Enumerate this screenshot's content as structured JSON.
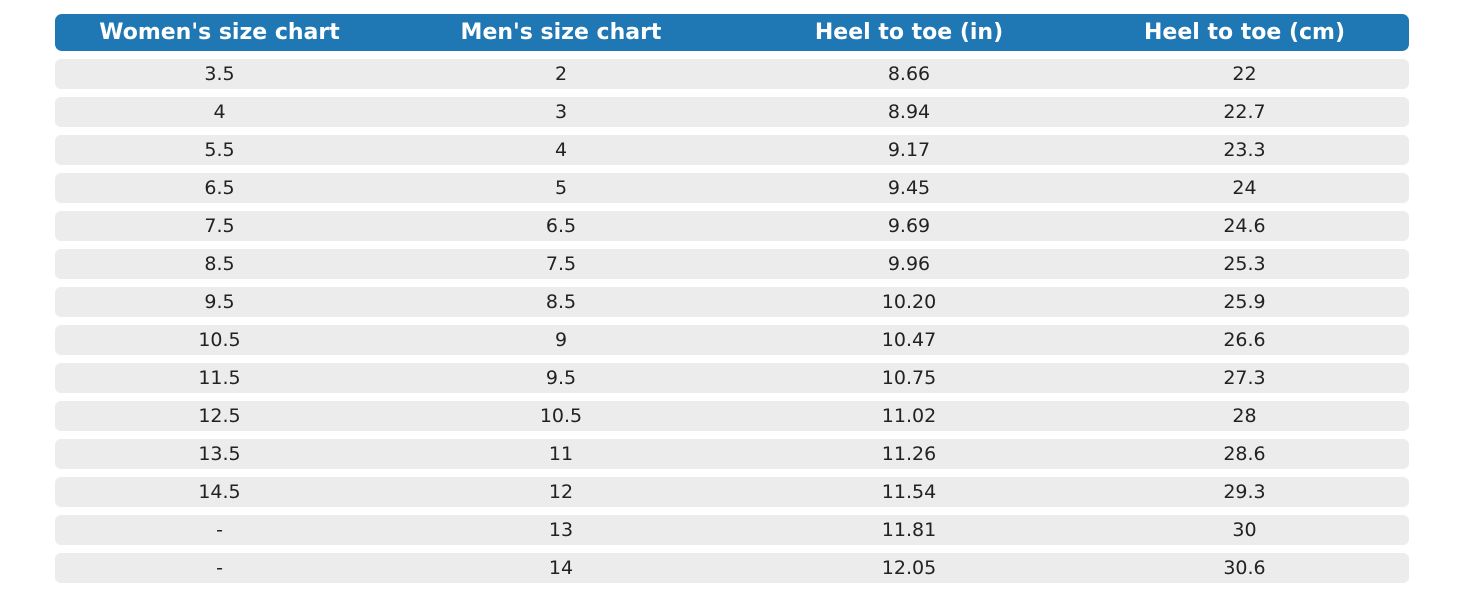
{
  "colors": {
    "header_bg": "#1f77b4",
    "row_bg": "#edeced"
  },
  "headers": [
    "Women's size chart",
    "Men's size chart",
    "Heel to toe (in)",
    "Heel to toe (cm)"
  ],
  "rows": [
    [
      "3.5",
      "2",
      "8.66",
      "22"
    ],
    [
      "4",
      "3",
      "8.94",
      "22.7"
    ],
    [
      "5.5",
      "4",
      "9.17",
      "23.3"
    ],
    [
      "6.5",
      "5",
      "9.45",
      "24"
    ],
    [
      "7.5",
      "6.5",
      "9.69",
      "24.6"
    ],
    [
      "8.5",
      "7.5",
      "9.96",
      "25.3"
    ],
    [
      "9.5",
      "8.5",
      "10.20",
      "25.9"
    ],
    [
      "10.5",
      "9",
      "10.47",
      "26.6"
    ],
    [
      "11.5",
      "9.5",
      "10.75",
      "27.3"
    ],
    [
      "12.5",
      "10.5",
      "11.02",
      "28"
    ],
    [
      "13.5",
      "11",
      "11.26",
      "28.6"
    ],
    [
      "14.5",
      "12",
      "11.54",
      "29.3"
    ],
    [
      "-",
      "13",
      "11.81",
      "30"
    ],
    [
      "-",
      "14",
      "12.05",
      "30.6"
    ]
  ]
}
